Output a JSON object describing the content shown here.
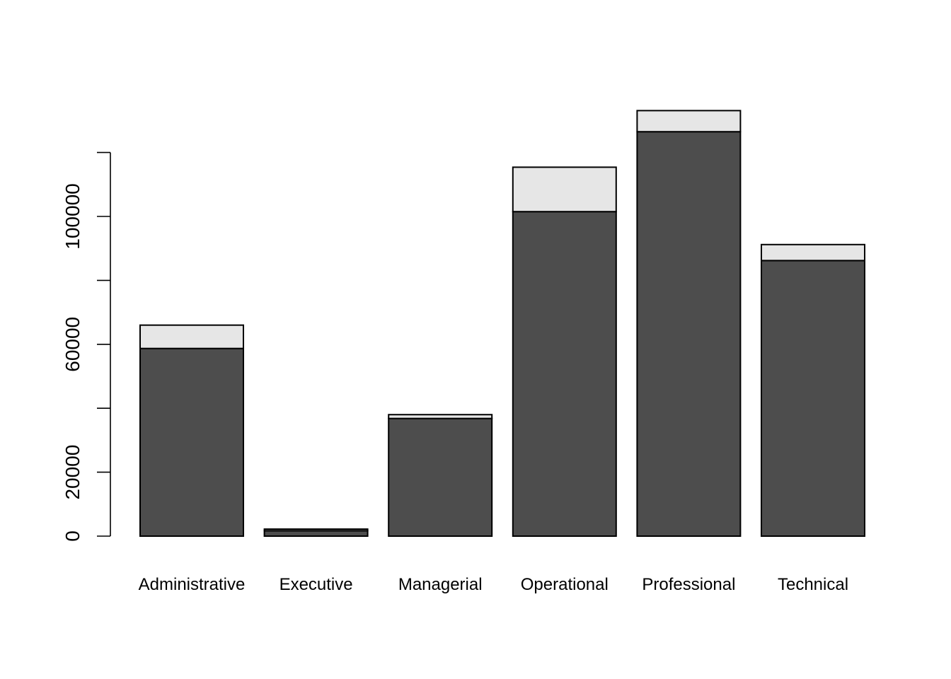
{
  "chart_data": {
    "type": "bar",
    "stacked": true,
    "title": "",
    "xlabel": "",
    "ylabel": "",
    "categories": [
      "Administrative",
      "Executive",
      "Managerial",
      "Operational",
      "Professional",
      "Technical"
    ],
    "series": [
      {
        "values": [
          58700,
          1700,
          36800,
          101500,
          126500,
          86200
        ],
        "color": "#4d4d4d"
      },
      {
        "values": [
          7300,
          500,
          1200,
          13900,
          6600,
          5000
        ],
        "color": "#e6e6e6"
      }
    ],
    "ylim": [
      0,
      133000
    ],
    "yticks": [
      0,
      20000,
      40000,
      60000,
      80000,
      100000,
      120000
    ],
    "ytick_labels": [
      "0",
      "20000",
      "",
      "60000",
      "",
      "100000",
      ""
    ],
    "grid": false,
    "legend": "none"
  }
}
